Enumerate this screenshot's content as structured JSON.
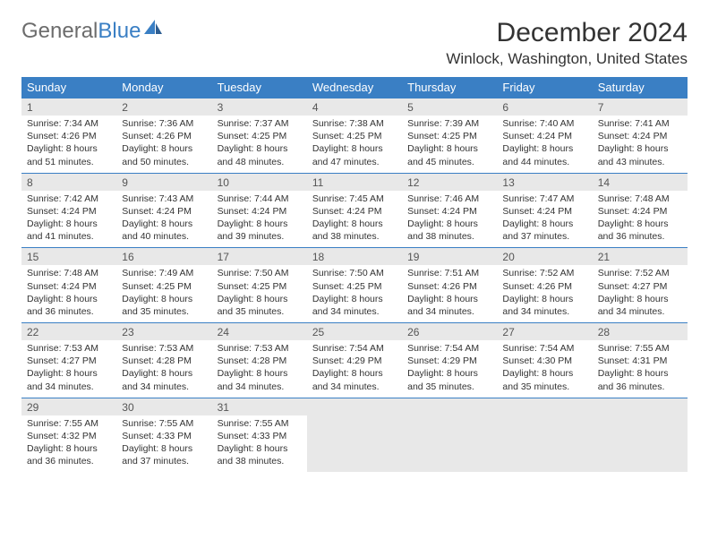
{
  "logo": {
    "text_gray": "General",
    "text_blue": "Blue"
  },
  "title": "December 2024",
  "location": "Winlock, Washington, United States",
  "colors": {
    "header_bg": "#3a7fc4",
    "daynum_bg": "#e8e8e8",
    "page_bg": "#ffffff",
    "text": "#333333",
    "logo_gray": "#6c6c6c"
  },
  "day_names": [
    "Sunday",
    "Monday",
    "Tuesday",
    "Wednesday",
    "Thursday",
    "Friday",
    "Saturday"
  ],
  "weeks": [
    [
      {
        "n": "1",
        "sr": "7:34 AM",
        "ss": "4:26 PM",
        "dl": "8 hours and 51 minutes."
      },
      {
        "n": "2",
        "sr": "7:36 AM",
        "ss": "4:26 PM",
        "dl": "8 hours and 50 minutes."
      },
      {
        "n": "3",
        "sr": "7:37 AM",
        "ss": "4:25 PM",
        "dl": "8 hours and 48 minutes."
      },
      {
        "n": "4",
        "sr": "7:38 AM",
        "ss": "4:25 PM",
        "dl": "8 hours and 47 minutes."
      },
      {
        "n": "5",
        "sr": "7:39 AM",
        "ss": "4:25 PM",
        "dl": "8 hours and 45 minutes."
      },
      {
        "n": "6",
        "sr": "7:40 AM",
        "ss": "4:24 PM",
        "dl": "8 hours and 44 minutes."
      },
      {
        "n": "7",
        "sr": "7:41 AM",
        "ss": "4:24 PM",
        "dl": "8 hours and 43 minutes."
      }
    ],
    [
      {
        "n": "8",
        "sr": "7:42 AM",
        "ss": "4:24 PM",
        "dl": "8 hours and 41 minutes."
      },
      {
        "n": "9",
        "sr": "7:43 AM",
        "ss": "4:24 PM",
        "dl": "8 hours and 40 minutes."
      },
      {
        "n": "10",
        "sr": "7:44 AM",
        "ss": "4:24 PM",
        "dl": "8 hours and 39 minutes."
      },
      {
        "n": "11",
        "sr": "7:45 AM",
        "ss": "4:24 PM",
        "dl": "8 hours and 38 minutes."
      },
      {
        "n": "12",
        "sr": "7:46 AM",
        "ss": "4:24 PM",
        "dl": "8 hours and 38 minutes."
      },
      {
        "n": "13",
        "sr": "7:47 AM",
        "ss": "4:24 PM",
        "dl": "8 hours and 37 minutes."
      },
      {
        "n": "14",
        "sr": "7:48 AM",
        "ss": "4:24 PM",
        "dl": "8 hours and 36 minutes."
      }
    ],
    [
      {
        "n": "15",
        "sr": "7:48 AM",
        "ss": "4:24 PM",
        "dl": "8 hours and 36 minutes."
      },
      {
        "n": "16",
        "sr": "7:49 AM",
        "ss": "4:25 PM",
        "dl": "8 hours and 35 minutes."
      },
      {
        "n": "17",
        "sr": "7:50 AM",
        "ss": "4:25 PM",
        "dl": "8 hours and 35 minutes."
      },
      {
        "n": "18",
        "sr": "7:50 AM",
        "ss": "4:25 PM",
        "dl": "8 hours and 34 minutes."
      },
      {
        "n": "19",
        "sr": "7:51 AM",
        "ss": "4:26 PM",
        "dl": "8 hours and 34 minutes."
      },
      {
        "n": "20",
        "sr": "7:52 AM",
        "ss": "4:26 PM",
        "dl": "8 hours and 34 minutes."
      },
      {
        "n": "21",
        "sr": "7:52 AM",
        "ss": "4:27 PM",
        "dl": "8 hours and 34 minutes."
      }
    ],
    [
      {
        "n": "22",
        "sr": "7:53 AM",
        "ss": "4:27 PM",
        "dl": "8 hours and 34 minutes."
      },
      {
        "n": "23",
        "sr": "7:53 AM",
        "ss": "4:28 PM",
        "dl": "8 hours and 34 minutes."
      },
      {
        "n": "24",
        "sr": "7:53 AM",
        "ss": "4:28 PM",
        "dl": "8 hours and 34 minutes."
      },
      {
        "n": "25",
        "sr": "7:54 AM",
        "ss": "4:29 PM",
        "dl": "8 hours and 34 minutes."
      },
      {
        "n": "26",
        "sr": "7:54 AM",
        "ss": "4:29 PM",
        "dl": "8 hours and 35 minutes."
      },
      {
        "n": "27",
        "sr": "7:54 AM",
        "ss": "4:30 PM",
        "dl": "8 hours and 35 minutes."
      },
      {
        "n": "28",
        "sr": "7:55 AM",
        "ss": "4:31 PM",
        "dl": "8 hours and 36 minutes."
      }
    ],
    [
      {
        "n": "29",
        "sr": "7:55 AM",
        "ss": "4:32 PM",
        "dl": "8 hours and 36 minutes."
      },
      {
        "n": "30",
        "sr": "7:55 AM",
        "ss": "4:33 PM",
        "dl": "8 hours and 37 minutes."
      },
      {
        "n": "31",
        "sr": "7:55 AM",
        "ss": "4:33 PM",
        "dl": "8 hours and 38 minutes."
      },
      null,
      null,
      null,
      null
    ]
  ],
  "labels": {
    "sunrise": "Sunrise:",
    "sunset": "Sunset:",
    "daylight": "Daylight:"
  }
}
